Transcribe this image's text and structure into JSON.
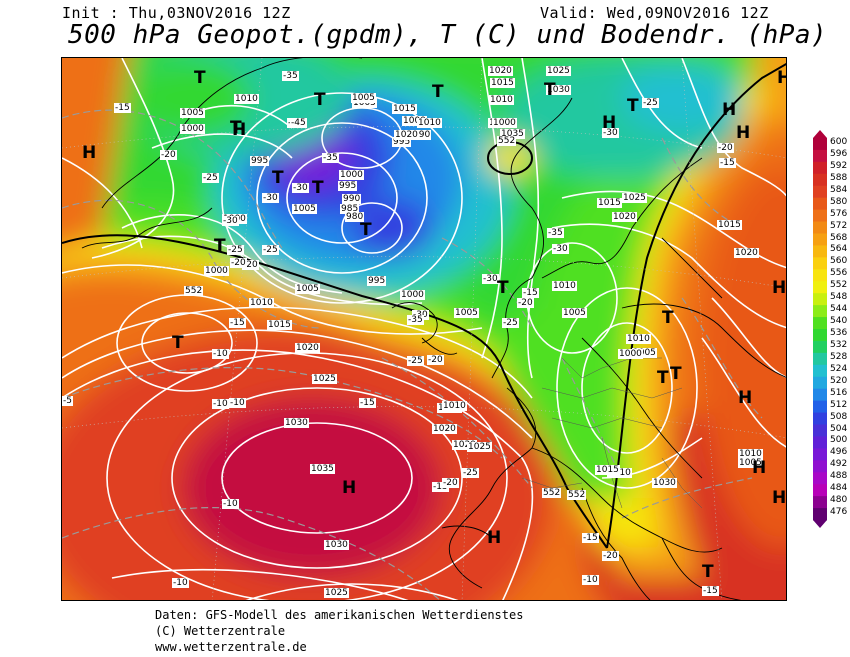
{
  "header": {
    "init": "Init : Thu,03NOV2016 12Z",
    "valid": "Valid: Wed,09NOV2016 12Z",
    "title": "500 hPa Geopot.(gpdm), T (C) und Bodendr. (hPa)"
  },
  "legend": {
    "values": [
      "600",
      "596",
      "592",
      "588",
      "584",
      "580",
      "576",
      "572",
      "568",
      "564",
      "560",
      "556",
      "552",
      "548",
      "544",
      "540",
      "536",
      "532",
      "528",
      "524",
      "520",
      "516",
      "512",
      "508",
      "504",
      "500",
      "496",
      "492",
      "488",
      "484",
      "480",
      "476"
    ],
    "colors": [
      "#b0003a",
      "#c41040",
      "#d02028",
      "#d83020",
      "#e04020",
      "#e85818",
      "#ee7018",
      "#f28a14",
      "#f6a012",
      "#f8b810",
      "#fad010",
      "#f8e410",
      "#f0f010",
      "#c8f010",
      "#8cec18",
      "#50e020",
      "#30d830",
      "#20d060",
      "#20c8a0",
      "#20c0d0",
      "#20a8e0",
      "#2088e8",
      "#2060e8",
      "#3040e0",
      "#4830d8",
      "#6020d8",
      "#7818d8",
      "#9010d0",
      "#a808c8",
      "#b800b8",
      "#8c0090",
      "#600070"
    ]
  },
  "pressure_labels": [
    {
      "t": "1010"
    },
    {
      "t": "1005"
    },
    {
      "t": "1000"
    },
    {
      "t": "995"
    },
    {
      "t": "990"
    },
    {
      "t": "995"
    },
    {
      "t": "1005"
    },
    {
      "t": "1005"
    },
    {
      "t": "1000"
    },
    {
      "t": "1010"
    },
    {
      "t": "1015"
    },
    {
      "t": "1020"
    },
    {
      "t": "1000"
    },
    {
      "t": "1005"
    },
    {
      "t": "1000"
    },
    {
      "t": "995"
    },
    {
      "t": "990"
    },
    {
      "t": "985"
    },
    {
      "t": "980"
    },
    {
      "t": "995"
    },
    {
      "t": "1000"
    },
    {
      "t": "1005"
    },
    {
      "t": "1010"
    },
    {
      "t": "1015"
    },
    {
      "t": "1020"
    },
    {
      "t": "1025"
    },
    {
      "t": "1030"
    },
    {
      "t": "1035"
    },
    {
      "t": "1030"
    },
    {
      "t": "1025"
    },
    {
      "t": "1020"
    },
    {
      "t": "1015"
    },
    {
      "t": "1010"
    },
    {
      "t": "1005"
    },
    {
      "t": "1000"
    },
    {
      "t": "1025"
    },
    {
      "t": "1020"
    },
    {
      "t": "1015"
    },
    {
      "t": "1010"
    },
    {
      "t": "1005"
    },
    {
      "t": "1035"
    },
    {
      "t": "1030"
    },
    {
      "t": "1025"
    },
    {
      "t": "1020"
    },
    {
      "t": "1015"
    },
    {
      "t": "1010"
    },
    {
      "t": "1005"
    },
    {
      "t": "1000"
    },
    {
      "t": "1010"
    },
    {
      "t": "1015"
    },
    {
      "t": "1020"
    },
    {
      "t": "1025"
    },
    {
      "t": "1030"
    },
    {
      "t": "1010"
    },
    {
      "t": "1005"
    },
    {
      "t": "1000"
    },
    {
      "t": "1015"
    },
    {
      "t": "1020"
    },
    {
      "t": "1010"
    },
    {
      "t": "1005"
    }
  ],
  "temp_labels": [
    {
      "t": "-15"
    },
    {
      "t": "-20"
    },
    {
      "t": "-25"
    },
    {
      "t": "-30"
    },
    {
      "t": "-35"
    },
    {
      "t": "-40"
    },
    {
      "t": "-45"
    },
    {
      "t": "-35"
    },
    {
      "t": "-30"
    },
    {
      "t": "-25"
    },
    {
      "t": "-20"
    },
    {
      "t": "-15"
    },
    {
      "t": "-10"
    },
    {
      "t": "-10"
    },
    {
      "t": "-15"
    },
    {
      "t": "-20"
    },
    {
      "t": "-25"
    },
    {
      "t": "-30"
    },
    {
      "t": "-35"
    },
    {
      "t": "-30"
    },
    {
      "t": "-25"
    },
    {
      "t": "-20"
    },
    {
      "t": "-15"
    },
    {
      "t": "-10"
    },
    {
      "t": "-15"
    },
    {
      "t": "-20"
    },
    {
      "t": "-25"
    },
    {
      "t": "-30"
    },
    {
      "t": "-25"
    },
    {
      "t": "-20"
    },
    {
      "t": "-15"
    },
    {
      "t": "-10"
    },
    {
      "t": "-5"
    },
    {
      "t": "-10"
    },
    {
      "t": "-15"
    },
    {
      "t": "-20"
    },
    {
      "t": "-30"
    },
    {
      "t": "-35"
    },
    {
      "t": "-30"
    },
    {
      "t": "-25"
    },
    {
      "t": "-20"
    },
    {
      "t": "-15"
    },
    {
      "t": "-10"
    },
    {
      "t": "-15"
    }
  ],
  "geo_labels": [
    {
      "t": "552"
    },
    {
      "t": "552"
    },
    {
      "t": "552"
    },
    {
      "t": "552"
    }
  ],
  "centers": [
    {
      "t": "T"
    },
    {
      "t": "T"
    },
    {
      "t": "T"
    },
    {
      "t": "T"
    },
    {
      "t": "T"
    },
    {
      "t": "T"
    },
    {
      "t": "T"
    },
    {
      "t": "T"
    },
    {
      "t": "T"
    },
    {
      "t": "T"
    },
    {
      "t": "T"
    },
    {
      "t": "T"
    },
    {
      "t": "T"
    },
    {
      "t": "T"
    },
    {
      "t": "T"
    },
    {
      "t": "T"
    },
    {
      "t": "H"
    },
    {
      "t": "H"
    },
    {
      "t": "H"
    },
    {
      "t": "H"
    },
    {
      "t": "H"
    },
    {
      "t": "H"
    },
    {
      "t": "H"
    },
    {
      "t": "H"
    },
    {
      "t": "H"
    },
    {
      "t": "H"
    },
    {
      "t": "H"
    },
    {
      "t": "H"
    }
  ],
  "footer": {
    "line1": "Daten: GFS-Modell des amerikanischen Wetterdienstes",
    "line2": "(C) Wetterzentrale",
    "line3": "www.wetterzentrale.de"
  }
}
